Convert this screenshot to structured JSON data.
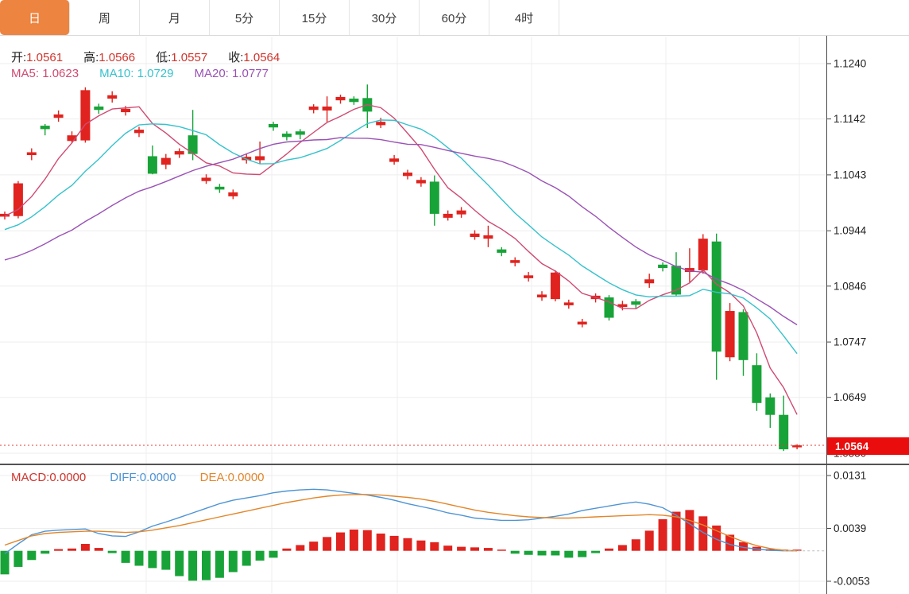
{
  "toolbar": {
    "tabs": [
      {
        "id": "tab-day",
        "label": "日",
        "active": true
      },
      {
        "id": "tab-week",
        "label": "周",
        "active": false
      },
      {
        "id": "tab-month",
        "label": "月",
        "active": false
      },
      {
        "id": "tab-5min",
        "label": "5分",
        "active": false
      },
      {
        "id": "tab-15min",
        "label": "15分",
        "active": false
      },
      {
        "id": "tab-30min",
        "label": "30分",
        "active": false
      },
      {
        "id": "tab-60min",
        "label": "60分",
        "active": false
      },
      {
        "id": "tab-4hour",
        "label": "4时",
        "active": false
      }
    ]
  },
  "legend": {
    "open_label": "开:",
    "open_value": "1.0561",
    "high_label": "高:",
    "high_value": "1.0566",
    "low_label": "低:",
    "low_value": "1.0557",
    "close_label": "收:",
    "close_value": "1.0564"
  },
  "ma_legend": {
    "ma5_label": "MA5:",
    "ma5_value": "1.0623",
    "ma10_label": "MA10:",
    "ma10_value": "1.0729",
    "ma20_label": "MA20:",
    "ma20_value": "1.0777"
  },
  "macd_legend": {
    "macd_label": "MACD:",
    "macd_value": "0.0000",
    "diff_label": "DIFF:",
    "diff_value": "0.0000",
    "dea_label": "DEA:",
    "dea_value": "0.0000"
  },
  "price_axis": {
    "tick_labels": [
      "1.1240",
      "1.1142",
      "1.1043",
      "1.0944",
      "1.0846",
      "1.0747",
      "1.0649",
      "1.0550"
    ],
    "last_price_label": "1.0564"
  },
  "macd_axis": {
    "tick_labels": [
      "0.0131",
      "0.0039",
      "-0.0053"
    ]
  },
  "colors": {
    "up_red": "#e0231e",
    "down_green": "#18a338",
    "ma5": "#cf4a72",
    "ma10": "#36c2cd",
    "ma20": "#9a52b5",
    "diff_blue": "#4e94d4",
    "dea_orange": "#e2862a",
    "badge_red": "#ea0d0d",
    "tab_orange": "#ed8440",
    "dotted_line": "#e03b30"
  },
  "chart_data": {
    "type": "candlestick",
    "title": "",
    "panels": [
      "price_kline_with_MA",
      "MACD"
    ],
    "price_axis_ticks": [
      1.124,
      1.1142,
      1.1043,
      1.0944,
      1.0846,
      1.0747,
      1.0649,
      1.055
    ],
    "last_close": 1.0564,
    "candles_ohlc": [
      [
        1.0969,
        1.0978,
        1.0964,
        1.0974
      ],
      [
        1.097,
        1.1032,
        1.0966,
        1.1028
      ],
      [
        1.1078,
        1.109,
        1.1069,
        1.1083
      ],
      [
        1.113,
        1.1133,
        1.1113,
        1.1124
      ],
      [
        1.1144,
        1.1157,
        1.1137,
        1.115
      ],
      [
        1.1103,
        1.112,
        1.1099,
        1.1113
      ],
      [
        1.1104,
        1.1198,
        1.11,
        1.1193
      ],
      [
        1.1164,
        1.1169,
        1.1151,
        1.1158
      ],
      [
        1.1178,
        1.1191,
        1.1171,
        1.1184
      ],
      [
        1.1154,
        1.1165,
        1.1148,
        1.116
      ],
      [
        1.1117,
        1.1128,
        1.111,
        1.1123
      ],
      [
        1.1076,
        1.1095,
        1.1044,
        1.1045
      ],
      [
        1.1061,
        1.108,
        1.1053,
        1.1073
      ],
      [
        1.1079,
        1.109,
        1.1073,
        1.1085
      ],
      [
        1.1113,
        1.1158,
        1.1069,
        1.108
      ],
      [
        1.1032,
        1.1044,
        1.1027,
        1.1038
      ],
      [
        1.1022,
        1.1027,
        1.1011,
        1.1017
      ],
      [
        1.1005,
        1.1017,
        1.1,
        1.1012
      ],
      [
        1.1069,
        1.108,
        1.1063,
        1.1075
      ],
      [
        1.1069,
        1.1102,
        1.1063,
        1.1076
      ],
      [
        1.1133,
        1.1137,
        1.1121,
        1.1127
      ],
      [
        1.1116,
        1.112,
        1.1104,
        1.111
      ],
      [
        1.112,
        1.1124,
        1.1106,
        1.1114
      ],
      [
        1.1158,
        1.1168,
        1.1152,
        1.1164
      ],
      [
        1.1157,
        1.1182,
        1.1137,
        1.1164
      ],
      [
        1.1175,
        1.1185,
        1.1169,
        1.1181
      ],
      [
        1.1178,
        1.1182,
        1.1167,
        1.1172
      ],
      [
        1.1179,
        1.1203,
        1.1126,
        1.1155
      ],
      [
        1.1131,
        1.1144,
        1.1126,
        1.1137
      ],
      [
        1.1066,
        1.1078,
        1.1061,
        1.1072
      ],
      [
        1.1041,
        1.1052,
        1.1035,
        1.1047
      ],
      [
        1.1028,
        1.1039,
        1.1022,
        1.1034
      ],
      [
        1.1031,
        1.1042,
        1.0953,
        1.0974
      ],
      [
        1.0967,
        1.098,
        1.0962,
        1.0974
      ],
      [
        1.0973,
        1.0986,
        1.0967,
        1.098
      ],
      [
        1.0933,
        1.0945,
        1.0928,
        1.0939
      ],
      [
        1.093,
        1.0953,
        1.0915,
        1.0936
      ],
      [
        1.0911,
        1.0915,
        1.0899,
        1.0905
      ],
      [
        1.0887,
        1.0897,
        1.0881,
        1.0892
      ],
      [
        1.086,
        1.0871,
        1.0854,
        1.0865
      ],
      [
        1.0826,
        1.0837,
        1.082,
        1.0831
      ],
      [
        1.0823,
        1.0874,
        1.0819,
        1.087
      ],
      [
        1.0812,
        1.0822,
        1.0806,
        1.0817
      ],
      [
        1.0778,
        1.0788,
        1.0773,
        1.0783
      ],
      [
        1.0823,
        1.0833,
        1.0817,
        1.0829
      ],
      [
        1.0826,
        1.083,
        1.0785,
        1.079
      ],
      [
        1.0809,
        1.082,
        1.0803,
        1.0814
      ],
      [
        1.0819,
        1.0823,
        1.0807,
        1.0813
      ],
      [
        1.0851,
        1.0868,
        1.0843,
        1.0858
      ],
      [
        1.0884,
        1.0888,
        1.0872,
        1.0878
      ],
      [
        1.0882,
        1.0906,
        1.0829,
        1.0831
      ],
      [
        1.0871,
        1.0913,
        1.0853,
        1.0878
      ],
      [
        1.0874,
        1.0938,
        1.0868,
        1.093
      ],
      [
        1.0925,
        1.0939,
        1.068,
        1.073
      ],
      [
        1.072,
        1.0816,
        1.0713,
        1.0802
      ],
      [
        1.08,
        1.0805,
        1.0687,
        1.0715
      ],
      [
        1.0706,
        1.0727,
        1.0625,
        1.0639
      ],
      [
        1.0649,
        1.0656,
        1.0595,
        1.0618
      ],
      [
        1.0618,
        1.0652,
        1.0554,
        1.0557
      ],
      [
        1.0561,
        1.0566,
        1.0557,
        1.0564
      ]
    ],
    "ma_periods": [
      5,
      10,
      20
    ],
    "ma_left_edge_seed": {
      "ma5": 1.0969,
      "ma10": 1.0943,
      "ma20": 1.0888
    },
    "macd": {
      "axis_ticks": [
        0.0131,
        0.0039,
        -0.0053
      ],
      "hist": [
        -0.0041,
        -0.0028,
        -0.0016,
        -0.0005,
        0.0003,
        0.0004,
        0.0012,
        0.0005,
        -0.0004,
        -0.0021,
        -0.0026,
        -0.003,
        -0.0033,
        -0.0044,
        -0.0052,
        -0.0051,
        -0.0047,
        -0.0037,
        -0.0026,
        -0.0017,
        -0.0012,
        0.0004,
        0.001,
        0.0016,
        0.0024,
        0.0032,
        0.0037,
        0.0036,
        0.003,
        0.0026,
        0.0022,
        0.0018,
        0.0015,
        0.0009,
        0.0007,
        0.0006,
        0.0005,
        0.0,
        -0.0005,
        -0.0007,
        -0.0008,
        -0.0008,
        -0.0012,
        -0.0011,
        -0.0004,
        0.0004,
        0.001,
        0.002,
        0.0035,
        0.0055,
        0.0068,
        0.0071,
        0.006,
        0.0044,
        0.0028,
        0.0015,
        0.0007,
        0.0003,
        0.0001,
        0.0
      ],
      "diff": [
        -0.0005,
        0.0012,
        0.0028,
        0.0034,
        0.0036,
        0.0037,
        0.0038,
        0.003,
        0.0026,
        0.0025,
        0.0033,
        0.0043,
        0.005,
        0.0058,
        0.0066,
        0.0074,
        0.0082,
        0.0088,
        0.0092,
        0.0096,
        0.0101,
        0.0104,
        0.0106,
        0.0107,
        0.0106,
        0.0103,
        0.01,
        0.0097,
        0.0093,
        0.0088,
        0.0082,
        0.0077,
        0.0072,
        0.0066,
        0.0062,
        0.0057,
        0.0055,
        0.0053,
        0.0053,
        0.0054,
        0.0057,
        0.006,
        0.0064,
        0.007,
        0.0074,
        0.0078,
        0.0082,
        0.0085,
        0.0081,
        0.0075,
        0.0062,
        0.0047,
        0.0032,
        0.002,
        0.0011,
        0.0006,
        0.0003,
        0.0001,
        0.0,
        0.0
      ],
      "dea": [
        0.001,
        0.0018,
        0.0026,
        0.003,
        0.0032,
        0.0033,
        0.0034,
        0.0034,
        0.0033,
        0.0032,
        0.0033,
        0.0036,
        0.004,
        0.0044,
        0.0049,
        0.0054,
        0.0059,
        0.0064,
        0.0069,
        0.0074,
        0.0079,
        0.0084,
        0.0088,
        0.0092,
        0.0095,
        0.0097,
        0.0098,
        0.0098,
        0.0097,
        0.0095,
        0.0093,
        0.009,
        0.0086,
        0.0081,
        0.0076,
        0.0071,
        0.0067,
        0.0064,
        0.0061,
        0.0059,
        0.0058,
        0.0057,
        0.0057,
        0.0058,
        0.0059,
        0.006,
        0.0061,
        0.0062,
        0.0063,
        0.0062,
        0.0059,
        0.0053,
        0.0045,
        0.0035,
        0.0025,
        0.0016,
        0.0009,
        0.0004,
        0.0001,
        0.0
      ]
    }
  }
}
